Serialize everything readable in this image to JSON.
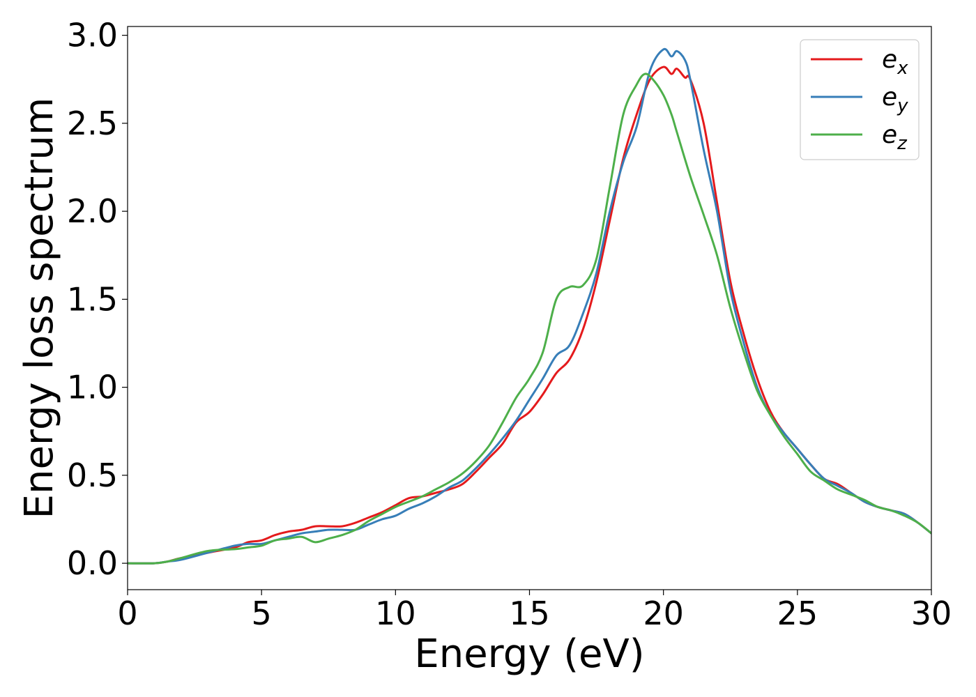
{
  "chart_data": {
    "type": "line",
    "title": "",
    "xlabel": "Energy (eV)",
    "ylabel": "Energy loss spectrum",
    "xlim": [
      0,
      30
    ],
    "ylim": [
      -0.15,
      3.05
    ],
    "xticks": [
      0,
      5,
      10,
      15,
      20,
      25,
      30
    ],
    "xtick_labels": [
      "0",
      "5",
      "10",
      "15",
      "20",
      "25",
      "30"
    ],
    "yticks": [
      0.0,
      0.5,
      1.0,
      1.5,
      2.0,
      2.5,
      3.0
    ],
    "ytick_labels": [
      "0.0",
      "0.5",
      "1.0",
      "1.5",
      "2.0",
      "2.5",
      "3.0"
    ],
    "grid": false,
    "legend_position": "top-right",
    "series": [
      {
        "name": "e",
        "subscript": "x",
        "color": "#e41a1c",
        "x": [
          0,
          1,
          1.5,
          2,
          3,
          4,
          4.5,
          5,
          5.5,
          6,
          6.5,
          7,
          7.5,
          8,
          8.5,
          9,
          9.5,
          10,
          10.5,
          11,
          11.5,
          12,
          12.5,
          13,
          13.5,
          14,
          14.5,
          15,
          15.5,
          16,
          16.5,
          17,
          17.5,
          18,
          18.5,
          19,
          19.5,
          20,
          20.3,
          20.5,
          20.8,
          21,
          21.5,
          22,
          22.5,
          23,
          23.5,
          24,
          24.5,
          25,
          25.5,
          26,
          26.5,
          27,
          27.5,
          28,
          28.5,
          29,
          29.5,
          30
        ],
        "y": [
          0,
          0,
          0.01,
          0.03,
          0.06,
          0.09,
          0.12,
          0.13,
          0.16,
          0.18,
          0.19,
          0.21,
          0.21,
          0.21,
          0.23,
          0.26,
          0.29,
          0.33,
          0.37,
          0.38,
          0.4,
          0.42,
          0.45,
          0.52,
          0.6,
          0.68,
          0.8,
          0.86,
          0.96,
          1.08,
          1.16,
          1.33,
          1.6,
          1.95,
          2.3,
          2.55,
          2.75,
          2.82,
          2.78,
          2.81,
          2.76,
          2.75,
          2.5,
          2.05,
          1.6,
          1.3,
          1.05,
          0.86,
          0.74,
          0.65,
          0.56,
          0.48,
          0.45,
          0.4,
          0.35,
          0.32,
          0.3,
          0.28,
          0.23,
          0.17
        ]
      },
      {
        "name": "e",
        "subscript": "y",
        "color": "#377eb8",
        "x": [
          0,
          1,
          1.5,
          2,
          3,
          4,
          4.5,
          5,
          5.5,
          6,
          6.5,
          7,
          7.5,
          8,
          8.5,
          9,
          9.5,
          10,
          10.5,
          11,
          11.5,
          12,
          12.5,
          13,
          13.5,
          14,
          14.5,
          15,
          15.5,
          16,
          16.5,
          17,
          17.5,
          18,
          18.5,
          19,
          19.5,
          20,
          20.3,
          20.5,
          20.8,
          21,
          21.5,
          22,
          22.5,
          23,
          23.5,
          24,
          24.5,
          25,
          25.5,
          26,
          26.5,
          27,
          27.5,
          28,
          28.5,
          29,
          29.5,
          30
        ],
        "y": [
          0,
          0,
          0.01,
          0.02,
          0.06,
          0.1,
          0.11,
          0.11,
          0.13,
          0.15,
          0.17,
          0.18,
          0.19,
          0.19,
          0.19,
          0.22,
          0.25,
          0.27,
          0.31,
          0.34,
          0.38,
          0.43,
          0.47,
          0.54,
          0.62,
          0.71,
          0.81,
          0.93,
          1.05,
          1.18,
          1.24,
          1.42,
          1.65,
          2.0,
          2.28,
          2.48,
          2.8,
          2.92,
          2.88,
          2.91,
          2.86,
          2.75,
          2.35,
          2.0,
          1.55,
          1.25,
          1.0,
          0.84,
          0.74,
          0.65,
          0.56,
          0.48,
          0.44,
          0.4,
          0.35,
          0.32,
          0.3,
          0.28,
          0.23,
          0.17
        ]
      },
      {
        "name": "e",
        "subscript": "z",
        "color": "#4daf4a",
        "x": [
          0,
          1,
          1.5,
          2,
          3,
          4,
          4.5,
          5,
          5.5,
          6,
          6.5,
          7,
          7.5,
          8,
          8.5,
          9,
          9.5,
          10,
          10.5,
          11,
          11.5,
          12,
          12.5,
          13,
          13.5,
          14,
          14.5,
          15,
          15.5,
          16,
          16.5,
          17,
          17.5,
          18,
          18.5,
          19,
          19.3,
          19.6,
          20,
          20.3,
          20.5,
          21,
          21.5,
          22,
          22.5,
          23,
          23.5,
          24,
          24.5,
          25,
          25.5,
          26,
          26.5,
          27,
          27.5,
          28,
          28.5,
          29,
          29.5,
          30
        ],
        "y": [
          0,
          0,
          0.01,
          0.03,
          0.07,
          0.08,
          0.09,
          0.1,
          0.13,
          0.14,
          0.15,
          0.12,
          0.14,
          0.16,
          0.19,
          0.24,
          0.28,
          0.32,
          0.35,
          0.38,
          0.42,
          0.46,
          0.51,
          0.58,
          0.67,
          0.8,
          0.94,
          1.05,
          1.2,
          1.5,
          1.57,
          1.58,
          1.73,
          2.14,
          2.55,
          2.72,
          2.78,
          2.75,
          2.66,
          2.55,
          2.45,
          2.2,
          1.98,
          1.75,
          1.45,
          1.2,
          0.98,
          0.84,
          0.72,
          0.62,
          0.52,
          0.47,
          0.42,
          0.39,
          0.36,
          0.32,
          0.3,
          0.27,
          0.23,
          0.17
        ]
      }
    ]
  }
}
